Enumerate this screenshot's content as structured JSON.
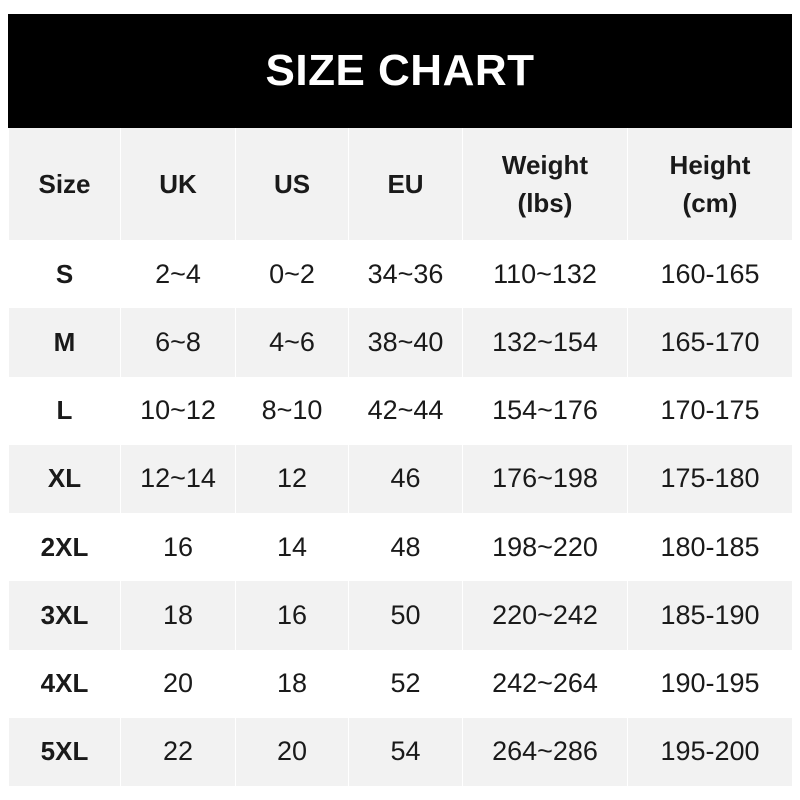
{
  "title": "SIZE CHART",
  "colors": {
    "header_bg": "#000000",
    "alt_row_bg": "#f2f2f2",
    "text": "#1a1a1a"
  },
  "columns": [
    "Size",
    "UK",
    "US",
    "EU",
    "Weight\n(lbs)",
    "Height\n(cm)"
  ],
  "rows": [
    [
      "S",
      "2~4",
      "0~2",
      "34~36",
      "110~132",
      "160-165"
    ],
    [
      "M",
      "6~8",
      "4~6",
      "38~40",
      "132~154",
      "165-170"
    ],
    [
      "L",
      "10~12",
      "8~10",
      "42~44",
      "154~176",
      "170-175"
    ],
    [
      "XL",
      "12~14",
      "12",
      "46",
      "176~198",
      "175-180"
    ],
    [
      "2XL",
      "16",
      "14",
      "48",
      "198~220",
      "180-185"
    ],
    [
      "3XL",
      "18",
      "16",
      "50",
      "220~242",
      "185-190"
    ],
    [
      "4XL",
      "20",
      "18",
      "52",
      "242~264",
      "190-195"
    ],
    [
      "5XL",
      "22",
      "20",
      "54",
      "264~286",
      "195-200"
    ]
  ]
}
